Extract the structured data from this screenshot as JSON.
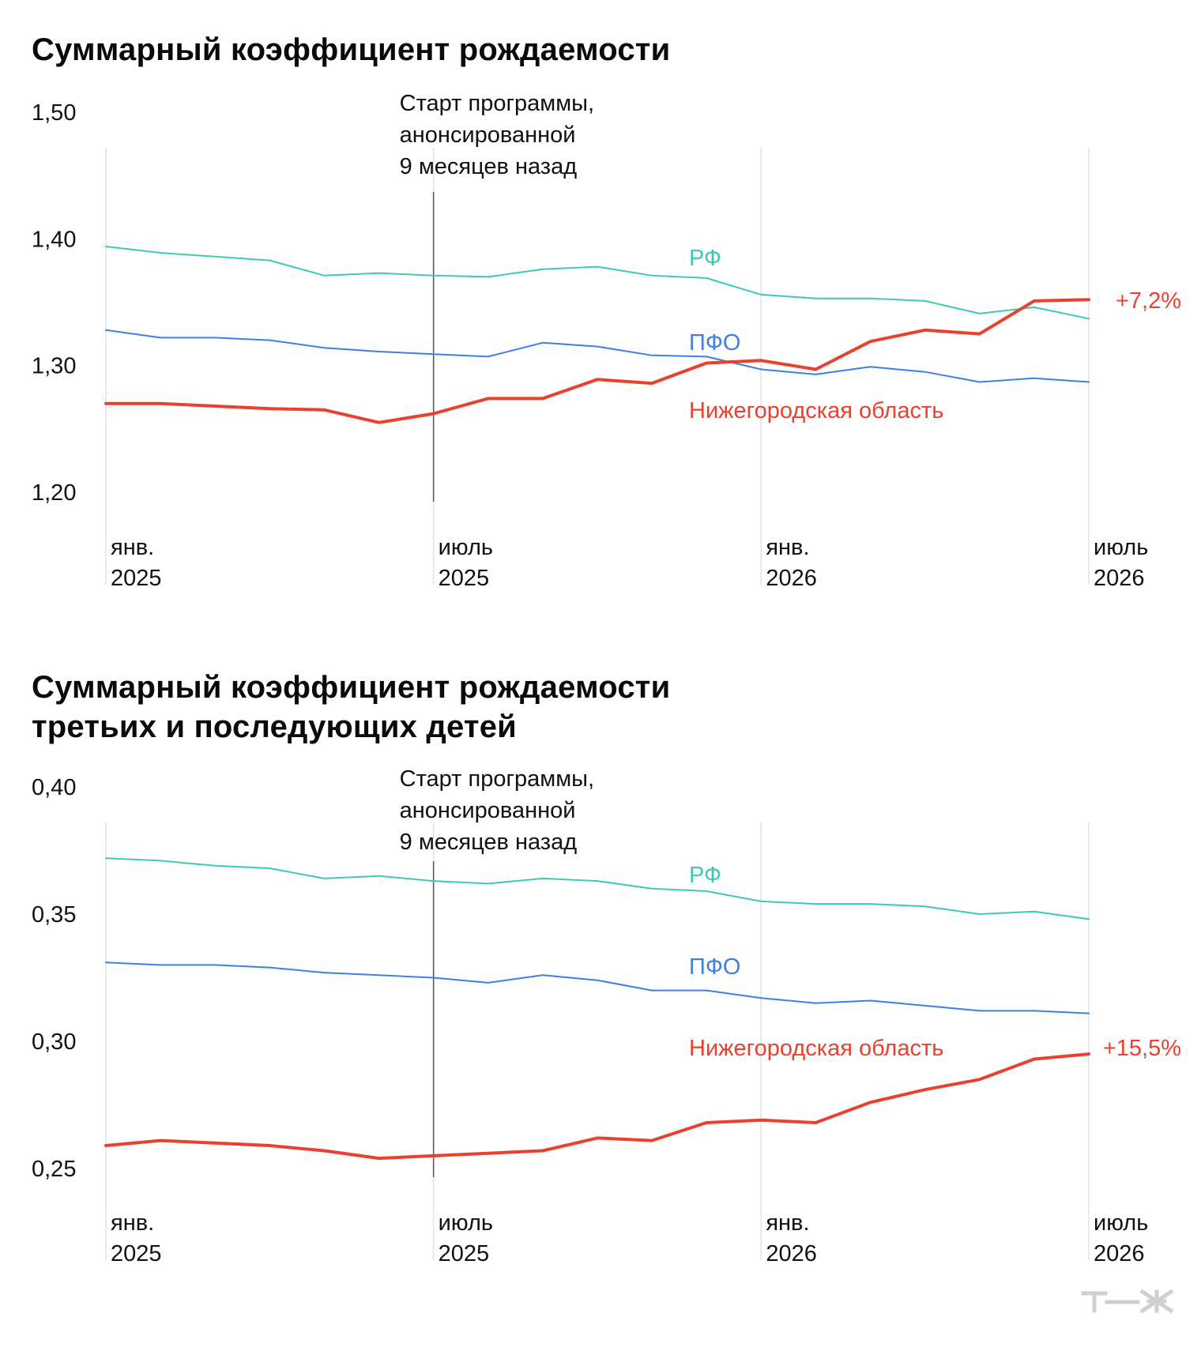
{
  "charts": [
    {
      "title_lines": [
        "Суммарный коэффициент рождаемости"
      ]
    },
    {
      "title_lines": [
        "Суммарный коэффициент рождаемости",
        "третьих и последующих детей"
      ]
    }
  ],
  "watermark": "т—ж",
  "colors": {
    "rf": "#3ec9b6",
    "pfo": "#3f7fe0",
    "nizhny": "#e8412f",
    "grid": "#e2e2e2",
    "annotation_line": "#555555"
  },
  "chart_data": [
    {
      "type": "line",
      "title": "Суммарный коэффициент рождаемости",
      "y_ticks": [
        1.5,
        1.4,
        1.3,
        1.2
      ],
      "y_tick_labels": [
        "1,50",
        "1,40",
        "1,30",
        "1,20"
      ],
      "ylim": [
        1.2,
        1.5
      ],
      "x": [
        "2025-01",
        "2025-02",
        "2025-03",
        "2025-04",
        "2025-05",
        "2025-06",
        "2025-07",
        "2025-08",
        "2025-09",
        "2025-10",
        "2025-11",
        "2025-12",
        "2026-01",
        "2026-02",
        "2026-03",
        "2026-04",
        "2026-05",
        "2026-06",
        "2026-07"
      ],
      "x_tick_labels": [
        {
          "month": "янв.",
          "year": "2025",
          "x": "2025-01"
        },
        {
          "month": "июль",
          "year": "2025",
          "x": "2025-07"
        },
        {
          "month": "янв.",
          "year": "2026",
          "x": "2026-01"
        },
        {
          "month": "июль",
          "year": "2026",
          "x": "2026-07"
        }
      ],
      "annotation": {
        "x": "2025-07",
        "lines": [
          "Старт программы,",
          "анонсированной",
          "9 месяцев назад"
        ]
      },
      "series": [
        {
          "key": "rf",
          "name": "РФ",
          "values": [
            1.394,
            1.389,
            1.386,
            1.383,
            1.371,
            1.373,
            1.371,
            1.37,
            1.376,
            1.378,
            1.371,
            1.369,
            1.356,
            1.353,
            1.353,
            1.351,
            1.341,
            1.346,
            1.337
          ]
        },
        {
          "key": "pfo",
          "name": "ПФО",
          "values": [
            1.328,
            1.322,
            1.322,
            1.32,
            1.314,
            1.311,
            1.309,
            1.307,
            1.318,
            1.315,
            1.308,
            1.307,
            1.297,
            1.293,
            1.299,
            1.295,
            1.287,
            1.29,
            1.287
          ]
        },
        {
          "key": "nizhny",
          "name": "Нижегородская область",
          "values": [
            1.27,
            1.27,
            1.268,
            1.266,
            1.265,
            1.255,
            1.262,
            1.274,
            1.274,
            1.289,
            1.286,
            1.302,
            1.304,
            1.297,
            1.319,
            1.328,
            1.325,
            1.351,
            1.352
          ],
          "end_label": "+7,2%"
        }
      ]
    },
    {
      "type": "line",
      "title": "Суммарный коэффициент рождаемости третьих и последующих детей",
      "y_ticks": [
        0.4,
        0.35,
        0.3,
        0.25
      ],
      "y_tick_labels": [
        "0,40",
        "0,35",
        "0,30",
        "0,25"
      ],
      "ylim": [
        0.25,
        0.4
      ],
      "x": [
        "2025-01",
        "2025-02",
        "2025-03",
        "2025-04",
        "2025-05",
        "2025-06",
        "2025-07",
        "2025-08",
        "2025-09",
        "2025-10",
        "2025-11",
        "2025-12",
        "2026-01",
        "2026-02",
        "2026-03",
        "2026-04",
        "2026-05",
        "2026-06",
        "2026-07"
      ],
      "x_tick_labels": [
        {
          "month": "янв.",
          "year": "2025",
          "x": "2025-01"
        },
        {
          "month": "июль",
          "year": "2025",
          "x": "2025-07"
        },
        {
          "month": "янв.",
          "year": "2026",
          "x": "2026-01"
        },
        {
          "month": "июль",
          "year": "2026",
          "x": "2026-07"
        }
      ],
      "annotation": {
        "x": "2025-07",
        "lines": [
          "Старт программы,",
          "анонсированной",
          "9 месяцев назад"
        ]
      },
      "series": [
        {
          "key": "rf",
          "name": "РФ",
          "values": [
            0.372,
            0.371,
            0.369,
            0.368,
            0.364,
            0.365,
            0.363,
            0.362,
            0.364,
            0.363,
            0.36,
            0.359,
            0.355,
            0.354,
            0.354,
            0.353,
            0.35,
            0.351,
            0.348
          ]
        },
        {
          "key": "pfo",
          "name": "ПФО",
          "values": [
            0.331,
            0.33,
            0.33,
            0.329,
            0.327,
            0.326,
            0.325,
            0.323,
            0.326,
            0.324,
            0.32,
            0.32,
            0.317,
            0.315,
            0.316,
            0.314,
            0.312,
            0.312,
            0.311
          ]
        },
        {
          "key": "nizhny",
          "name": "Нижегородская область",
          "values": [
            0.259,
            0.261,
            0.26,
            0.259,
            0.257,
            0.254,
            0.255,
            0.256,
            0.257,
            0.262,
            0.261,
            0.268,
            0.269,
            0.268,
            0.276,
            0.281,
            0.285,
            0.293,
            0.295
          ],
          "end_label": "+15,5%"
        }
      ]
    }
  ]
}
